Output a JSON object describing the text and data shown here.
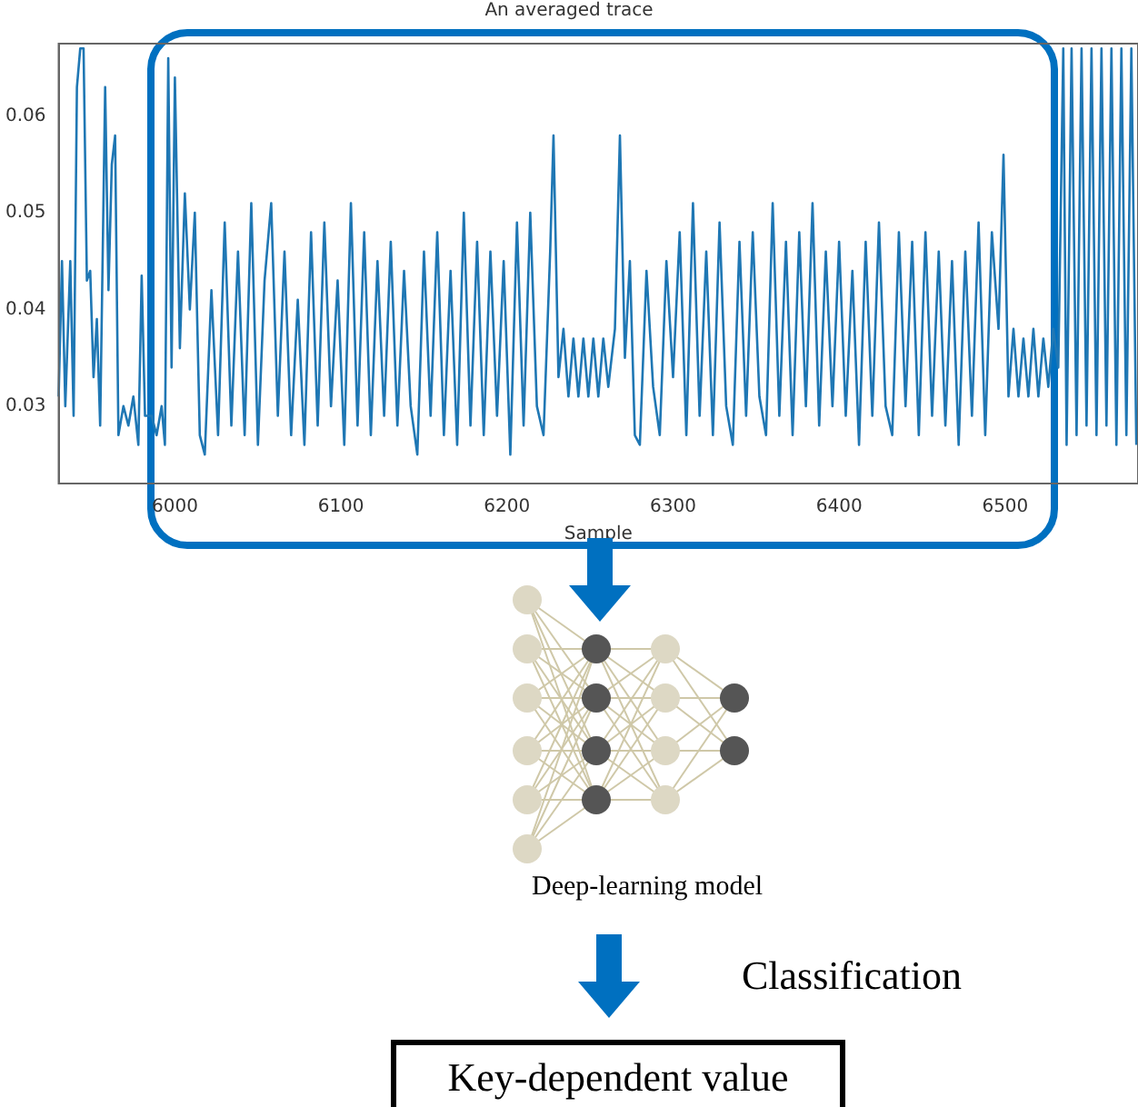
{
  "chart_data": {
    "type": "line",
    "title": "An averaged trace",
    "xlabel": "Sample",
    "annotations": [
      "Deep-learning model",
      "Classification",
      "Key-dependent value"
    ],
    "x": [
      5930,
      5932,
      5934,
      5937,
      5939,
      5941,
      5943,
      5945,
      5947,
      5949,
      5951,
      5953,
      5955,
      5958,
      5960,
      5962,
      5964,
      5966,
      5969,
      5972,
      5975,
      5978,
      5980,
      5982,
      5986,
      5989,
      5992,
      5994,
      5996,
      5998,
      6000,
      6003,
      6006,
      6009,
      6012,
      6015,
      6018,
      6022,
      6026,
      6030,
      6034,
      6038,
      6042,
      6046,
      6050,
      6054,
      6058,
      6062,
      6066,
      6070,
      6074,
      6078,
      6082,
      6086,
      6090,
      6094,
      6098,
      6102,
      6106,
      6110,
      6114,
      6118,
      6122,
      6126,
      6130,
      6134,
      6138,
      6142,
      6146,
      6150,
      6154,
      6158,
      6162,
      6166,
      6170,
      6174,
      6178,
      6182,
      6186,
      6190,
      6194,
      6198,
      6202,
      6206,
      6210,
      6214,
      6218,
      6222,
      6226,
      6228,
      6231,
      6234,
      6237,
      6240,
      6243,
      6246,
      6249,
      6252,
      6255,
      6258,
      6261,
      6265,
      6268,
      6271,
      6274,
      6277,
      6280,
      6284,
      6288,
      6292,
      6296,
      6300,
      6304,
      6308,
      6312,
      6316,
      6320,
      6324,
      6328,
      6332,
      6336,
      6340,
      6344,
      6348,
      6352,
      6356,
      6360,
      6364,
      6368,
      6372,
      6376,
      6380,
      6384,
      6388,
      6392,
      6396,
      6400,
      6404,
      6408,
      6412,
      6416,
      6420,
      6424,
      6428,
      6432,
      6436,
      6440,
      6444,
      6448,
      6452,
      6456,
      6460,
      6464,
      6468,
      6472,
      6476,
      6480,
      6484,
      6488,
      6492,
      6496,
      6499,
      6502,
      6505,
      6508,
      6511,
      6514,
      6517,
      6520,
      6523,
      6526,
      6529,
      6532,
      6535,
      6537,
      6540,
      6543,
      6546,
      6549,
      6552,
      6555,
      6558,
      6561,
      6564,
      6567,
      6570,
      6573,
      6576,
      6579
    ],
    "series": [
      {
        "color": "#1f77b4",
        "values": [
          0.031,
          0.045,
          0.03,
          0.045,
          0.029,
          0.063,
          0.067,
          0.067,
          0.043,
          0.044,
          0.033,
          0.039,
          0.028,
          0.063,
          0.042,
          0.055,
          0.058,
          0.027,
          0.03,
          0.028,
          0.031,
          0.026,
          0.0435,
          0.029,
          0.029,
          0.027,
          0.03,
          0.026,
          0.066,
          0.034,
          0.064,
          0.036,
          0.052,
          0.04,
          0.05,
          0.027,
          0.025,
          0.042,
          0.027,
          0.049,
          0.028,
          0.046,
          0.027,
          0.051,
          0.026,
          0.043,
          0.051,
          0.029,
          0.046,
          0.027,
          0.041,
          0.026,
          0.048,
          0.028,
          0.049,
          0.03,
          0.043,
          0.026,
          0.051,
          0.028,
          0.048,
          0.027,
          0.045,
          0.029,
          0.047,
          0.028,
          0.044,
          0.03,
          0.025,
          0.046,
          0.029,
          0.048,
          0.027,
          0.044,
          0.026,
          0.05,
          0.028,
          0.047,
          0.027,
          0.046,
          0.029,
          0.045,
          0.025,
          0.049,
          0.028,
          0.05,
          0.03,
          0.027,
          0.046,
          0.058,
          0.033,
          0.038,
          0.031,
          0.037,
          0.031,
          0.037,
          0.031,
          0.037,
          0.031,
          0.037,
          0.032,
          0.038,
          0.058,
          0.035,
          0.045,
          0.027,
          0.026,
          0.044,
          0.032,
          0.027,
          0.045,
          0.033,
          0.048,
          0.027,
          0.051,
          0.029,
          0.046,
          0.027,
          0.049,
          0.03,
          0.026,
          0.047,
          0.029,
          0.048,
          0.031,
          0.027,
          0.051,
          0.029,
          0.047,
          0.027,
          0.048,
          0.03,
          0.051,
          0.028,
          0.046,
          0.03,
          0.047,
          0.029,
          0.044,
          0.026,
          0.047,
          0.029,
          0.049,
          0.03,
          0.027,
          0.048,
          0.03,
          0.047,
          0.027,
          0.048,
          0.029,
          0.046,
          0.028,
          0.045,
          0.026,
          0.046,
          0.029,
          0.049,
          0.027,
          0.048,
          0.038,
          0.056,
          0.031,
          0.038,
          0.031,
          0.037,
          0.031,
          0.038,
          0.031,
          0.037,
          0.032,
          0.038,
          0.034,
          0.067,
          0.026,
          0.067,
          0.027,
          0.067,
          0.028,
          0.067,
          0.027,
          0.067,
          0.028,
          0.067,
          0.026,
          0.067,
          0.027,
          0.067,
          0.026
        ]
      }
    ],
    "xlim": [
      5930,
      6580
    ],
    "ylim": [
      0.022,
      0.0675
    ],
    "xticks": [
      6000,
      6100,
      6200,
      6300,
      6400,
      6500
    ],
    "yticks": [
      0.03,
      0.04,
      0.05,
      0.06
    ],
    "grid": false,
    "legend": false,
    "marker": "none",
    "line_style": "solid"
  }
}
